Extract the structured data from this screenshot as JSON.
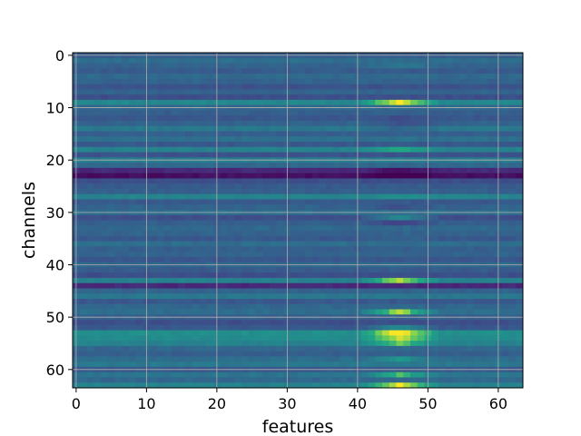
{
  "chart_data": {
    "type": "heatmap",
    "title": "",
    "xlabel": "features",
    "ylabel": "channels",
    "cols": 64,
    "rows": 64,
    "xlim": [
      -0.5,
      63.5
    ],
    "ylim": [
      63.5,
      -0.5
    ],
    "colormap": "viridis",
    "grid": true,
    "x_ticks": [
      0,
      10,
      20,
      30,
      40,
      50,
      60
    ],
    "y_ticks": [
      0,
      10,
      20,
      30,
      40,
      50,
      60
    ],
    "row_base": [
      0.37,
      0.45,
      0.4,
      0.36,
      0.43,
      0.4,
      0.32,
      0.4,
      0.3,
      0.58,
      0.42,
      0.38,
      0.34,
      0.4,
      0.5,
      0.38,
      0.46,
      0.35,
      0.55,
      0.32,
      0.52,
      0.42,
      0.15,
      0.05,
      0.3,
      0.36,
      0.38,
      0.56,
      0.35,
      0.4,
      0.45,
      0.3,
      0.38,
      0.42,
      0.4,
      0.35,
      0.45,
      0.38,
      0.4,
      0.34,
      0.42,
      0.36,
      0.3,
      0.55,
      0.15,
      0.4,
      0.5,
      0.35,
      0.42,
      0.45,
      0.38,
      0.3,
      0.35,
      0.62,
      0.6,
      0.55,
      0.42,
      0.38,
      0.45,
      0.5,
      0.35,
      0.48,
      0.42,
      0.55
    ],
    "feature_band": {
      "col_start": 41,
      "col_end": 51
    },
    "row_band": [
      0,
      0,
      0.1,
      0,
      0,
      0,
      0,
      0,
      0,
      0.45,
      0,
      0,
      -0.05,
      -0.1,
      -0.1,
      0,
      0,
      0,
      0.2,
      0,
      0,
      0,
      -0.12,
      -0.1,
      0,
      0,
      0,
      0.05,
      0,
      -0.1,
      0,
      0.3,
      -0.15,
      0,
      0,
      0.05,
      0,
      0,
      0,
      0,
      0,
      0,
      0,
      0.4,
      0,
      0,
      0,
      0,
      0,
      0.5,
      0,
      0,
      0.25,
      0.45,
      0.38,
      0.3,
      0,
      0,
      0.2,
      0,
      0,
      0.32,
      0,
      0.45
    ]
  }
}
